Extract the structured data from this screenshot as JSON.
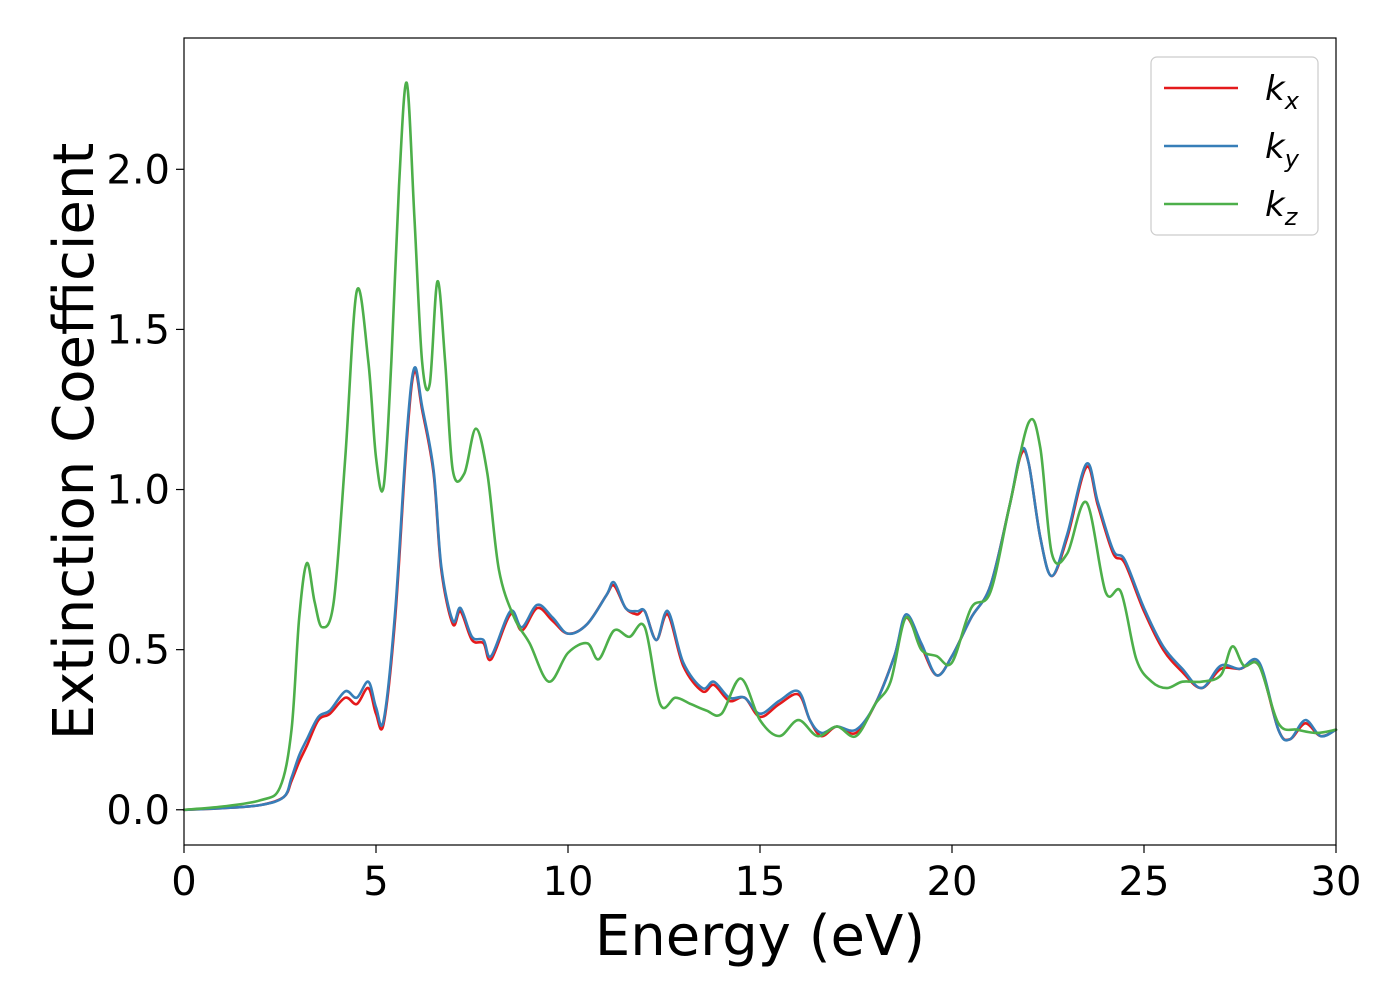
{
  "chart_data": {
    "type": "line",
    "title": "",
    "xlabel": "Energy (eV)",
    "ylabel": "Extinction Coefficient",
    "xlim": [
      0,
      30
    ],
    "ylim": [
      -0.11,
      2.41
    ],
    "xticks": [
      0,
      5,
      10,
      15,
      20,
      25,
      30
    ],
    "xtick_labels": [
      "0",
      "5",
      "10",
      "15",
      "20",
      "25",
      "30"
    ],
    "yticks": [
      0.0,
      0.5,
      1.0,
      1.5,
      2.0
    ],
    "ytick_labels": [
      "0.0",
      "0.5",
      "1.0",
      "1.5",
      "2.0"
    ],
    "grid": false,
    "legend_position": "top-right",
    "series": [
      {
        "name": "k",
        "subscript": "x",
        "color": "#e41a1c",
        "x": [
          0,
          1,
          2,
          2.6,
          2.8,
          3.0,
          3.2,
          3.5,
          3.8,
          4.2,
          4.5,
          4.8,
          5.0,
          5.2,
          5.5,
          5.8,
          6.0,
          6.2,
          6.5,
          6.7,
          7.0,
          7.2,
          7.5,
          7.8,
          8.0,
          8.5,
          8.8,
          9.2,
          9.6,
          10.0,
          10.5,
          11.0,
          11.2,
          11.5,
          11.8,
          12.0,
          12.3,
          12.6,
          13.0,
          13.5,
          13.8,
          14.2,
          14.6,
          15.0,
          15.5,
          16.0,
          16.3,
          16.6,
          17.0,
          17.5,
          18.0,
          18.5,
          18.8,
          19.2,
          19.6,
          20.0,
          20.5,
          21.0,
          21.5,
          21.8,
          22.0,
          22.3,
          22.6,
          23.0,
          23.5,
          23.8,
          24.2,
          24.5,
          25.0,
          25.5,
          26.0,
          26.5,
          27.0,
          27.5,
          28.0,
          28.5,
          28.8,
          29.2,
          29.6,
          30.0
        ],
        "y": [
          0,
          0.005,
          0.015,
          0.04,
          0.09,
          0.15,
          0.2,
          0.28,
          0.3,
          0.35,
          0.33,
          0.38,
          0.3,
          0.27,
          0.6,
          1.15,
          1.37,
          1.25,
          1.05,
          0.75,
          0.58,
          0.62,
          0.53,
          0.52,
          0.47,
          0.61,
          0.56,
          0.63,
          0.59,
          0.55,
          0.58,
          0.67,
          0.7,
          0.63,
          0.61,
          0.62,
          0.53,
          0.61,
          0.45,
          0.37,
          0.39,
          0.34,
          0.35,
          0.29,
          0.33,
          0.36,
          0.28,
          0.23,
          0.26,
          0.24,
          0.33,
          0.48,
          0.6,
          0.51,
          0.42,
          0.48,
          0.6,
          0.7,
          0.95,
          1.11,
          1.08,
          0.85,
          0.73,
          0.85,
          1.07,
          0.95,
          0.8,
          0.77,
          0.62,
          0.5,
          0.43,
          0.38,
          0.44,
          0.44,
          0.45,
          0.25,
          0.22,
          0.27,
          0.23,
          0.25
        ]
      },
      {
        "name": "k",
        "subscript": "y",
        "color": "#377eb8",
        "x": [
          0,
          1,
          2,
          2.6,
          2.8,
          3.0,
          3.2,
          3.5,
          3.8,
          4.2,
          4.5,
          4.8,
          5.0,
          5.2,
          5.5,
          5.8,
          6.0,
          6.2,
          6.5,
          6.7,
          7.0,
          7.2,
          7.5,
          7.8,
          8.0,
          8.5,
          8.8,
          9.2,
          9.6,
          10.0,
          10.5,
          11.0,
          11.2,
          11.5,
          11.8,
          12.0,
          12.3,
          12.6,
          13.0,
          13.5,
          13.8,
          14.2,
          14.6,
          15.0,
          15.5,
          16.0,
          16.3,
          16.6,
          17.0,
          17.5,
          18.0,
          18.5,
          18.8,
          19.2,
          19.6,
          20.0,
          20.5,
          21.0,
          21.5,
          21.8,
          22.0,
          22.3,
          22.6,
          23.0,
          23.5,
          23.8,
          24.2,
          24.5,
          25.0,
          25.5,
          26.0,
          26.5,
          27.0,
          27.5,
          28.0,
          28.5,
          28.8,
          29.2,
          29.6,
          30.0
        ],
        "y": [
          0,
          0.005,
          0.015,
          0.04,
          0.1,
          0.17,
          0.22,
          0.29,
          0.31,
          0.37,
          0.35,
          0.4,
          0.32,
          0.28,
          0.62,
          1.17,
          1.38,
          1.26,
          1.06,
          0.76,
          0.59,
          0.63,
          0.54,
          0.53,
          0.48,
          0.62,
          0.57,
          0.64,
          0.6,
          0.55,
          0.58,
          0.67,
          0.71,
          0.63,
          0.62,
          0.62,
          0.53,
          0.62,
          0.46,
          0.38,
          0.4,
          0.35,
          0.35,
          0.3,
          0.34,
          0.37,
          0.28,
          0.24,
          0.26,
          0.25,
          0.33,
          0.48,
          0.61,
          0.52,
          0.42,
          0.48,
          0.6,
          0.7,
          0.95,
          1.12,
          1.08,
          0.85,
          0.73,
          0.86,
          1.08,
          0.96,
          0.81,
          0.78,
          0.63,
          0.51,
          0.44,
          0.38,
          0.45,
          0.44,
          0.46,
          0.25,
          0.22,
          0.28,
          0.23,
          0.25
        ]
      },
      {
        "name": "k",
        "subscript": "z",
        "color": "#4daf4a",
        "x": [
          0,
          1,
          2,
          2.5,
          2.8,
          3.0,
          3.2,
          3.4,
          3.6,
          3.9,
          4.2,
          4.5,
          4.8,
          5.0,
          5.2,
          5.4,
          5.6,
          5.8,
          6.0,
          6.2,
          6.4,
          6.6,
          6.8,
          7.0,
          7.3,
          7.6,
          7.9,
          8.2,
          8.6,
          9.0,
          9.5,
          10.0,
          10.5,
          10.8,
          11.2,
          11.6,
          12.0,
          12.4,
          12.8,
          13.2,
          13.6,
          14.0,
          14.5,
          15.0,
          15.5,
          16.0,
          16.5,
          17.0,
          17.5,
          18.0,
          18.4,
          18.8,
          19.2,
          19.6,
          20.0,
          20.5,
          21.0,
          21.5,
          22.0,
          22.3,
          22.6,
          23.0,
          23.5,
          24.0,
          24.4,
          24.8,
          25.2,
          25.6,
          26.0,
          26.5,
          27.0,
          27.3,
          27.6,
          28.0,
          28.5,
          29.0,
          29.5,
          30.0
        ],
        "y": [
          0,
          0.01,
          0.03,
          0.07,
          0.25,
          0.6,
          0.77,
          0.65,
          0.57,
          0.65,
          1.1,
          1.62,
          1.4,
          1.1,
          1.01,
          1.4,
          1.95,
          2.27,
          1.85,
          1.4,
          1.33,
          1.65,
          1.4,
          1.06,
          1.05,
          1.19,
          1.05,
          0.75,
          0.6,
          0.52,
          0.4,
          0.49,
          0.52,
          0.47,
          0.56,
          0.54,
          0.57,
          0.33,
          0.35,
          0.33,
          0.31,
          0.3,
          0.41,
          0.28,
          0.23,
          0.28,
          0.23,
          0.26,
          0.23,
          0.33,
          0.4,
          0.6,
          0.5,
          0.48,
          0.46,
          0.63,
          0.68,
          0.95,
          1.21,
          1.13,
          0.8,
          0.8,
          0.96,
          0.68,
          0.68,
          0.47,
          0.4,
          0.38,
          0.4,
          0.4,
          0.42,
          0.51,
          0.45,
          0.45,
          0.27,
          0.25,
          0.24,
          0.25
        ]
      }
    ]
  }
}
